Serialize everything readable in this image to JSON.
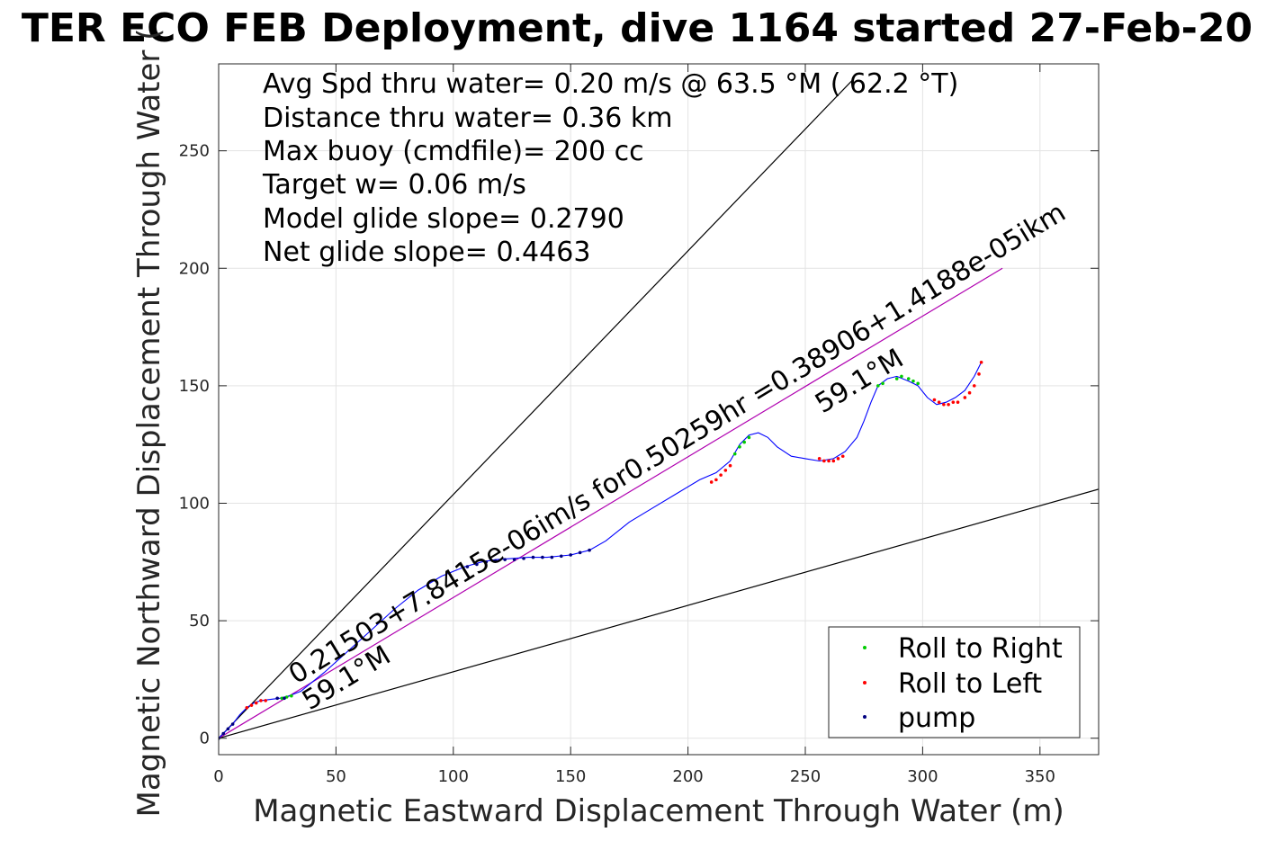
{
  "chart_data": {
    "type": "line",
    "title": "TER ECO FEB Deployment, dive 1164 started 27-Feb-20",
    "xlabel": "Magnetic Eastward Displacement Through Water (m)",
    "ylabel": "Magnetic Northward Displacement Through Water (",
    "xlim": [
      0,
      375
    ],
    "ylim": [
      -7,
      287
    ],
    "xticks": [
      "0",
      "50",
      "100",
      "150",
      "200",
      "250",
      "300",
      "350"
    ],
    "yticks": [
      "0",
      "50",
      "100",
      "150",
      "200",
      "250"
    ],
    "xtick_values": [
      0,
      50,
      100,
      150,
      200,
      250,
      300,
      350
    ],
    "ytick_values": [
      0,
      50,
      100,
      150,
      200,
      250
    ],
    "grid": true,
    "info_lines": [
      "Avg Spd thru water=  0.20 m/s @  63.5 °M ( 62.2 °T)",
      "Distance thru water=  0.36 km",
      "Max buoy (cmdfile)= 200 cc",
      "Target w= 0.06 m/s",
      "Model glide slope= 0.2790",
      "Net glide slope= 0.4463"
    ],
    "annotations": {
      "fit_text": "0.21503+7.8415e-06im/s for0.50259hr =0.38906+1.4188e-05ikm",
      "heading_label_1": "59.1°M",
      "heading_label_2": "59.1°M"
    },
    "reference_lines": [
      {
        "name": "steep",
        "from": [
          0,
          0
        ],
        "to": [
          270,
          280
        ]
      },
      {
        "name": "shallow",
        "from": [
          0,
          0
        ],
        "to": [
          375,
          106
        ]
      },
      {
        "name": "heading",
        "from": [
          0,
          0
        ],
        "to": [
          334,
          200
        ]
      }
    ],
    "track": {
      "x": [
        0,
        3,
        6,
        9,
        12,
        15,
        18,
        22,
        26,
        30,
        35,
        45,
        55,
        65,
        75,
        85,
        95,
        105,
        112,
        118,
        125,
        132,
        140,
        150,
        158,
        165,
        175,
        185,
        195,
        205,
        212,
        218,
        222,
        226,
        230,
        234,
        238,
        244,
        250,
        256,
        262,
        267,
        272,
        275,
        278,
        281,
        285,
        289,
        294,
        298,
        302,
        306,
        310,
        314,
        318,
        322,
        325
      ],
      "y": [
        0,
        3,
        6,
        10,
        13,
        15,
        16,
        16.5,
        17,
        18,
        20,
        28,
        37,
        46,
        55,
        63,
        69,
        73,
        75,
        76,
        76.5,
        77,
        77,
        78,
        80,
        84,
        92,
        98,
        104,
        110,
        113,
        118,
        125,
        129,
        130,
        128,
        124,
        120,
        119,
        118,
        119,
        122,
        128,
        135,
        143,
        150,
        153,
        154,
        152,
        150,
        145,
        142,
        143,
        145,
        148,
        154,
        160
      ],
      "line_color": "#0000ff"
    },
    "series": [
      {
        "name": "Roll to Right",
        "color": "#00cc00",
        "x": [
          27,
          29,
          31,
          289,
          291,
          294,
          296,
          298,
          281,
          283,
          220,
          222,
          224,
          226
        ],
        "y": [
          17,
          17.5,
          18,
          153,
          154,
          153,
          152,
          151,
          150,
          151,
          121,
          124,
          126,
          128
        ]
      },
      {
        "name": "Roll to Left",
        "color": "#ff0000",
        "x": [
          12,
          14,
          16,
          18,
          20,
          210,
          212,
          214,
          216,
          218,
          256,
          258,
          260,
          262,
          264,
          266,
          305,
          307,
          309,
          311,
          313,
          315,
          318,
          320,
          322,
          324,
          325
        ],
        "y": [
          13,
          14,
          15,
          16,
          16,
          109,
          110,
          112,
          114,
          116,
          119,
          118,
          118,
          118,
          119,
          120,
          144,
          143,
          142,
          142,
          143,
          143,
          145,
          147,
          150,
          155,
          160
        ],
        "marker_color": "#ff0000"
      },
      {
        "name": "pump",
        "color": "#000080",
        "x": [
          106,
          110,
          114,
          118,
          122,
          126,
          130,
          134,
          138,
          142,
          146,
          150,
          154,
          158,
          0,
          2,
          4,
          6,
          25,
          28
        ],
        "y": [
          73,
          74,
          75,
          75.5,
          76,
          76,
          76.5,
          77,
          77,
          77,
          77.5,
          78,
          79,
          80,
          0,
          2,
          4,
          6,
          17,
          17
        ]
      }
    ],
    "legend": {
      "placement": "bottom-right",
      "entries": [
        "Roll to Right",
        "Roll to Left",
        "pump"
      ]
    },
    "colors": {
      "track": "#0000ff",
      "heading_line": "#b000b0",
      "reference": "#000000",
      "grid": "#e3e3e3"
    }
  }
}
